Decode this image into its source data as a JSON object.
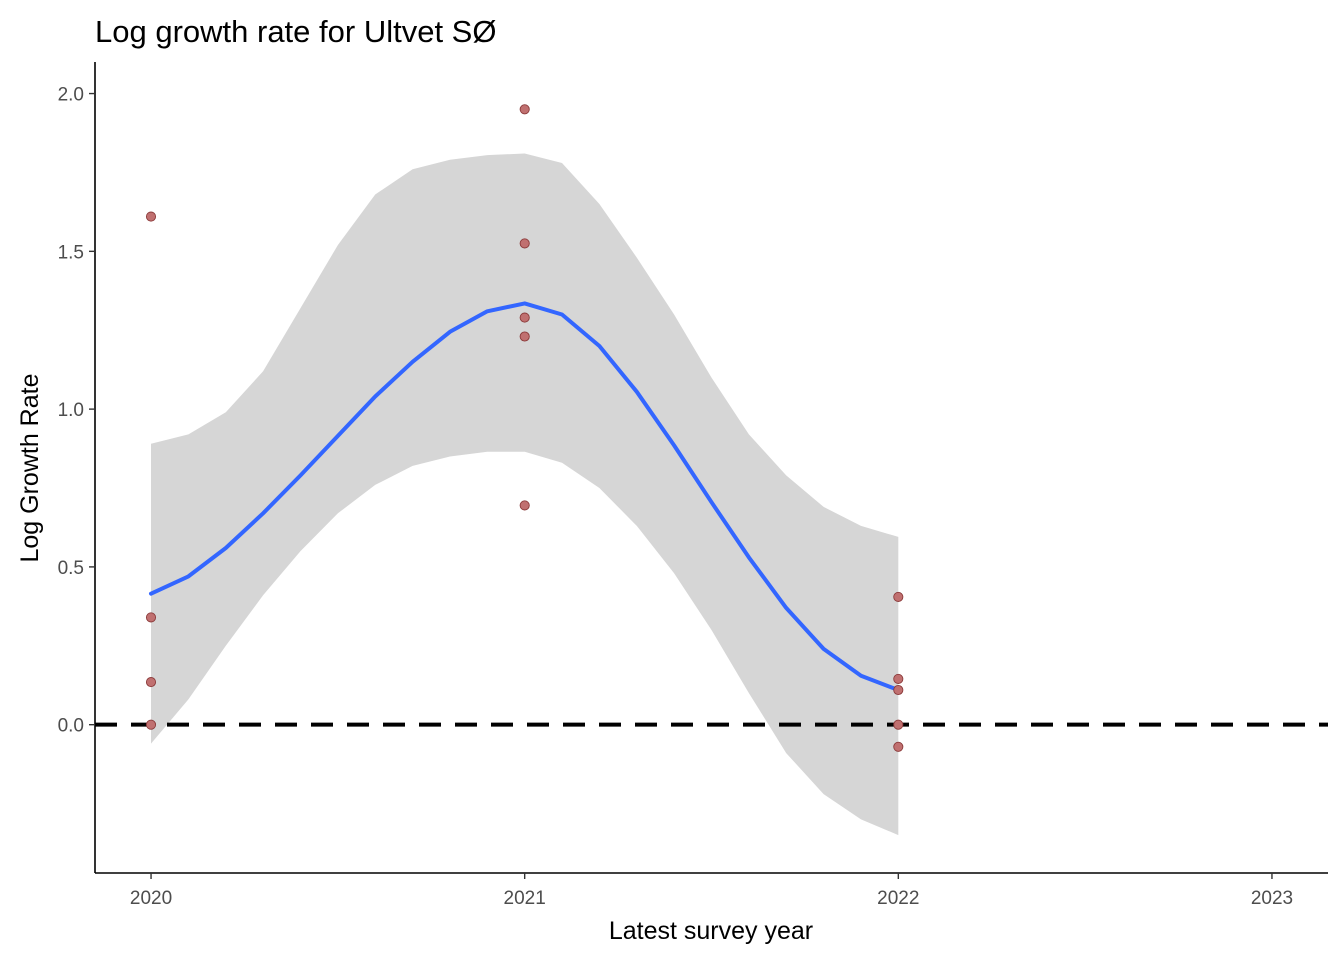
{
  "chart_data": {
    "type": "scatter",
    "title": "Log growth rate for Ultvet SØ",
    "xlabel": "Latest survey year",
    "ylabel": "Log Growth Rate",
    "xlim": [
      2019.85,
      2023.15
    ],
    "ylim": [
      -0.47,
      2.1
    ],
    "x_ticks": [
      2020,
      2021,
      2022,
      2023
    ],
    "x_tick_labels": [
      "2020",
      "2021",
      "2022",
      "2023"
    ],
    "y_ticks": [
      0.0,
      0.5,
      1.0,
      1.5,
      2.0
    ],
    "y_tick_labels": [
      "0.0",
      "0.5",
      "1.0",
      "1.5",
      "2.0"
    ],
    "grid": false,
    "legend": "none",
    "points": [
      {
        "x": 2020,
        "y": 1.61
      },
      {
        "x": 2020,
        "y": 0.34
      },
      {
        "x": 2020,
        "y": 0.135
      },
      {
        "x": 2020,
        "y": 0.0
      },
      {
        "x": 2021,
        "y": 1.95
      },
      {
        "x": 2021,
        "y": 1.525
      },
      {
        "x": 2021,
        "y": 1.29
      },
      {
        "x": 2021,
        "y": 1.23
      },
      {
        "x": 2021,
        "y": 0.695
      },
      {
        "x": 2022,
        "y": 0.405
      },
      {
        "x": 2022,
        "y": 0.145
      },
      {
        "x": 2022,
        "y": 0.11
      },
      {
        "x": 2022,
        "y": 0.0
      },
      {
        "x": 2022,
        "y": -0.07
      }
    ],
    "smooth": {
      "x": [
        2020.0,
        2020.1,
        2020.2,
        2020.3,
        2020.4,
        2020.5,
        2020.6,
        2020.7,
        2020.8,
        2020.9,
        2021.0,
        2021.1,
        2021.2,
        2021.3,
        2021.4,
        2021.5,
        2021.6,
        2021.7,
        2021.8,
        2021.9,
        2022.0
      ],
      "y": [
        0.415,
        0.47,
        0.56,
        0.67,
        0.79,
        0.915,
        1.04,
        1.15,
        1.245,
        1.31,
        1.335,
        1.3,
        1.2,
        1.055,
        0.885,
        0.705,
        0.53,
        0.37,
        0.24,
        0.155,
        0.11
      ],
      "lower": [
        -0.06,
        0.08,
        0.25,
        0.41,
        0.55,
        0.67,
        0.76,
        0.82,
        0.85,
        0.865,
        0.865,
        0.83,
        0.75,
        0.63,
        0.48,
        0.3,
        0.1,
        -0.09,
        -0.22,
        -0.3,
        -0.35
      ],
      "upper": [
        0.89,
        0.92,
        0.99,
        1.12,
        1.32,
        1.52,
        1.68,
        1.76,
        1.79,
        1.805,
        1.81,
        1.78,
        1.65,
        1.48,
        1.3,
        1.1,
        0.92,
        0.79,
        0.69,
        0.63,
        0.595
      ]
    },
    "reference_line": {
      "y": 0.0,
      "style": "dashed"
    },
    "colors": {
      "points_fill": "#c07070",
      "points_stroke": "#8b3a3a",
      "smooth_line": "#3366ff",
      "ribbon": "#d6d6d6",
      "reference_line": "#000000",
      "axis": "#000000"
    }
  }
}
